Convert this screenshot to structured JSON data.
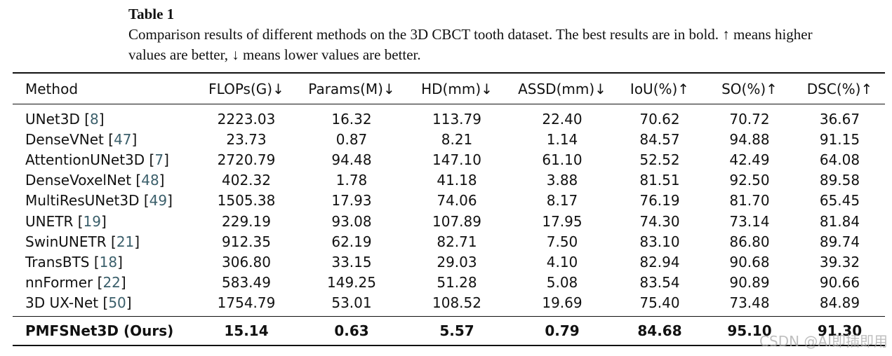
{
  "caption": {
    "label": "Table 1",
    "text": "Comparison results of different methods on the 3D CBCT tooth dataset. The best results are in bold. ↑ means higher values are better, ↓ means lower values are better."
  },
  "table": {
    "headers": [
      "Method",
      "FLOPs(G)↓",
      "Params(M)↓",
      "HD(mm)↓",
      "ASSD(mm)↓",
      "IoU(%)↑",
      "SO(%)↑",
      "DSC(%)↑"
    ],
    "rows": [
      {
        "name": "UNet3D",
        "ref": "8",
        "values": [
          "2223.03",
          "16.32",
          "113.79",
          "22.40",
          "70.62",
          "70.72",
          "36.67"
        ]
      },
      {
        "name": "DenseVNet",
        "ref": "47",
        "values": [
          "23.73",
          "0.87",
          "8.21",
          "1.14",
          "84.57",
          "94.88",
          "91.15"
        ]
      },
      {
        "name": "AttentionUNet3D",
        "ref": "7",
        "values": [
          "2720.79",
          "94.48",
          "147.10",
          "61.10",
          "52.52",
          "42.49",
          "64.08"
        ]
      },
      {
        "name": "DenseVoxelNet",
        "ref": "48",
        "values": [
          "402.32",
          "1.78",
          "41.18",
          "3.88",
          "81.51",
          "92.50",
          "89.58"
        ]
      },
      {
        "name": "MultiResUNet3D",
        "ref": "49",
        "values": [
          "1505.38",
          "17.93",
          "74.06",
          "8.17",
          "76.19",
          "81.70",
          "65.45"
        ]
      },
      {
        "name": "UNETR",
        "ref": "19",
        "values": [
          "229.19",
          "93.08",
          "107.89",
          "17.95",
          "74.30",
          "73.14",
          "81.84"
        ]
      },
      {
        "name": "SwinUNETR",
        "ref": "21",
        "values": [
          "912.35",
          "62.19",
          "82.71",
          "7.50",
          "83.10",
          "86.80",
          "89.74"
        ]
      },
      {
        "name": "TransBTS",
        "ref": "18",
        "values": [
          "306.80",
          "33.15",
          "29.03",
          "4.10",
          "82.94",
          "90.68",
          "39.32"
        ]
      },
      {
        "name": "nnFormer",
        "ref": "22",
        "values": [
          "583.49",
          "149.25",
          "51.28",
          "5.08",
          "83.54",
          "90.89",
          "90.66"
        ]
      },
      {
        "name": "3D UX-Net",
        "ref": "50",
        "values": [
          "1754.79",
          "53.01",
          "108.52",
          "19.69",
          "75.40",
          "73.48",
          "84.89"
        ]
      }
    ],
    "ours": {
      "name": "PMFSNet3D (Ours)",
      "values": [
        "15.14",
        "0.63",
        "5.57",
        "0.79",
        "84.68",
        "95.10",
        "91.30"
      ]
    }
  },
  "watermark": "CSDN @AI即插即用"
}
